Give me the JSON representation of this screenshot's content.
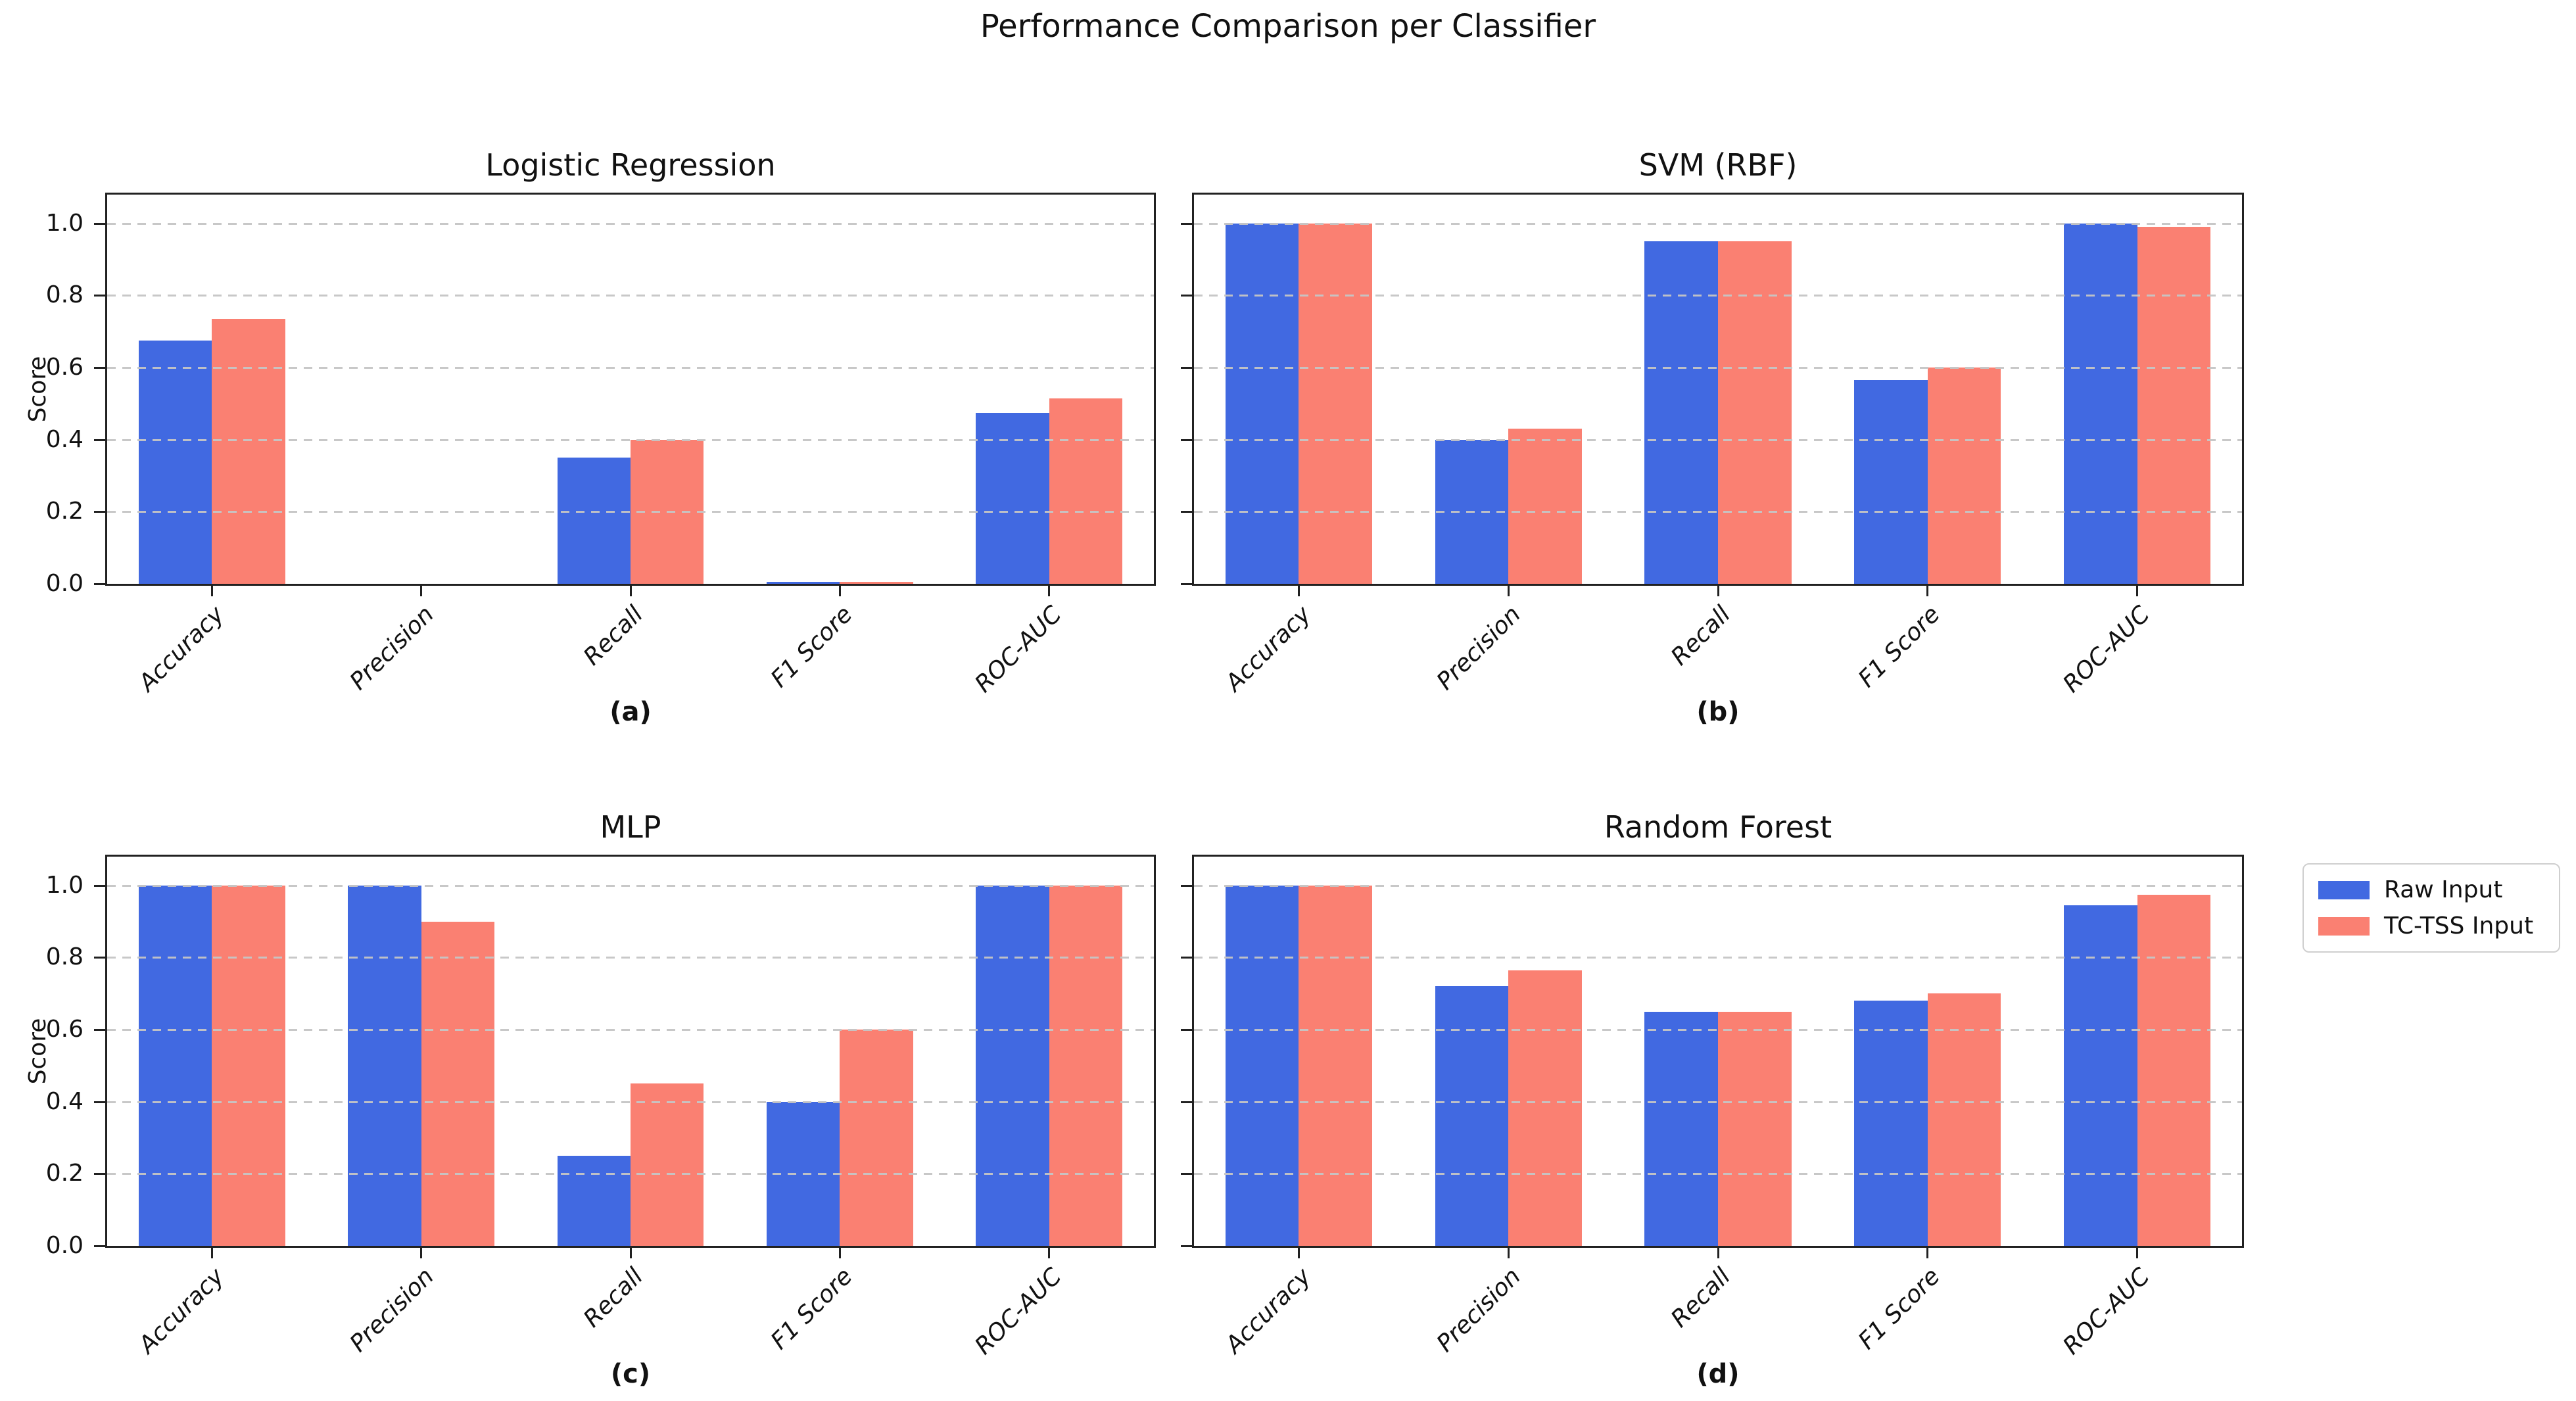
{
  "chart_data": {
    "type": "bar",
    "suptitle": "Performance Comparison per Classifier",
    "categories": [
      "Accuracy",
      "Precision",
      "Recall",
      "F1 Score",
      "ROC-AUC"
    ],
    "ylabel": "Score",
    "ylim": [
      0,
      1.08
    ],
    "yticks": [
      0.0,
      0.2,
      0.4,
      0.6,
      0.8,
      1.0
    ],
    "ytick_labels": [
      "0.0",
      "0.2",
      "0.4",
      "0.6",
      "0.8",
      "1.0"
    ],
    "grid": "dashed horizontal, drawn over bars",
    "legend": {
      "position": "right of figure",
      "entries": [
        {
          "label": "Raw Input",
          "color": "#4169E1"
        },
        {
          "label": "TC-TSS Input",
          "color": "#FA8072"
        }
      ]
    },
    "subplots": [
      {
        "title": "Logistic Regression",
        "caption": "(a)",
        "series": [
          {
            "name": "Raw Input",
            "color": "#4169E1",
            "values": [
              0.675,
              0.0,
              0.35,
              0.005,
              0.475
            ]
          },
          {
            "name": "TC-TSS Input",
            "color": "#FA8072",
            "values": [
              0.735,
              0.0,
              0.4,
              0.005,
              0.515
            ]
          }
        ]
      },
      {
        "title": "SVM (RBF)",
        "caption": "(b)",
        "series": [
          {
            "name": "Raw Input",
            "color": "#4169E1",
            "values": [
              1.0,
              0.4,
              0.95,
              0.565,
              1.0
            ]
          },
          {
            "name": "TC-TSS Input",
            "color": "#FA8072",
            "values": [
              1.0,
              0.43,
              0.95,
              0.6,
              0.99
            ]
          }
        ]
      },
      {
        "title": "MLP",
        "caption": "(c)",
        "series": [
          {
            "name": "Raw Input",
            "color": "#4169E1",
            "values": [
              1.0,
              1.0,
              0.25,
              0.4,
              1.0
            ]
          },
          {
            "name": "TC-TSS Input",
            "color": "#FA8072",
            "values": [
              1.0,
              0.9,
              0.45,
              0.6,
              1.0
            ]
          }
        ]
      },
      {
        "title": "Random Forest",
        "caption": "(d)",
        "series": [
          {
            "name": "Raw Input",
            "color": "#4169E1",
            "values": [
              1.0,
              0.72,
              0.65,
              0.68,
              0.945
            ]
          },
          {
            "name": "TC-TSS Input",
            "color": "#FA8072",
            "values": [
              1.0,
              0.765,
              0.65,
              0.7,
              0.975
            ]
          }
        ]
      }
    ]
  }
}
